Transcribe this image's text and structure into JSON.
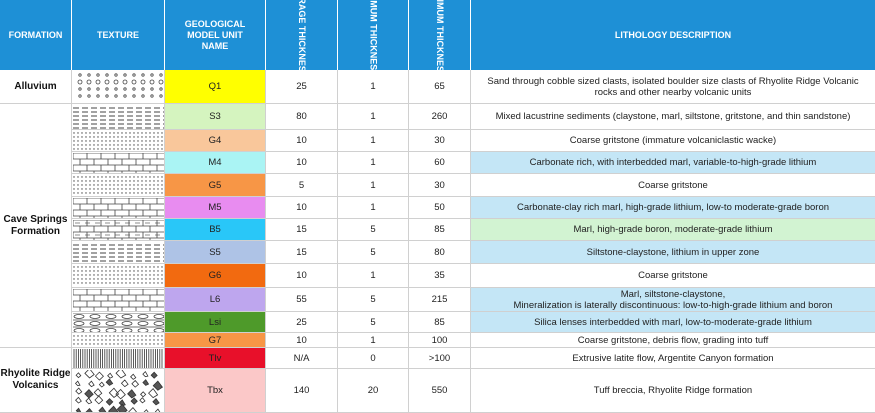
{
  "headers": {
    "formation": "FORMATION",
    "texture": "TEXTURE",
    "unit": "GEOLOGICAL MODEL UNIT NAME",
    "avg": "*AVERAGE THICKNESS (M)",
    "min": "*MINIMUM THICKNESS (M)",
    "max": "*MAXIMUM THICKNESS (M)",
    "lith": "LITHOLOGY DESCRIPTION"
  },
  "formations": [
    {
      "name": "Alluvium"
    },
    {
      "name": "Cave Springs Formation"
    },
    {
      "name": "Rhyolite Ridge Volcanics"
    }
  ],
  "rows": [
    {
      "unit": "Q1",
      "avg": "25",
      "min": "1",
      "max": "65",
      "lith": "Sand through cobble sized clasts, isolated boulder size clasts of Rhyolite Ridge Volcanic rocks and other nearby volcanic units",
      "unit_color": "#ffff00",
      "lith_bg": "#ffffff",
      "texture": "gravel-icon"
    },
    {
      "unit": "S3",
      "avg": "80",
      "min": "1",
      "max": "260",
      "lith": "Mixed lacustrine sediments (claystone, marl, siltstone, gritstone, and thin sandstone)",
      "unit_color": "#d5f4bf",
      "lith_bg": "#ffffff",
      "texture": "dash-icon"
    },
    {
      "unit": "G4",
      "avg": "10",
      "min": "1",
      "max": "30",
      "lith": "Coarse gritstone (immature volcaniclastic wacke)",
      "unit_color": "#f9c79b",
      "lith_bg": "#ffffff",
      "texture": "dots-icon"
    },
    {
      "unit": "M4",
      "avg": "10",
      "min": "1",
      "max": "60",
      "lith": "Carbonate rich, with interbedded marl, variable-to-high-grade lithium",
      "unit_color": "#aaf4f4",
      "lith_bg": "#c4e6f6",
      "texture": "brick-icon"
    },
    {
      "unit": "G5",
      "avg": "5",
      "min": "1",
      "max": "30",
      "lith": "Coarse gritstone",
      "unit_color": "#f79646",
      "lith_bg": "#ffffff",
      "texture": "dots-icon"
    },
    {
      "unit": "M5",
      "avg": "10",
      "min": "1",
      "max": "50",
      "lith": "Carbonate-clay rich marl, high-grade lithium, low-to moderate-grade boron",
      "unit_color": "#e88cf0",
      "lith_bg": "#c4e6f6",
      "texture": "brick-icon"
    },
    {
      "unit": "B5",
      "avg": "15",
      "min": "5",
      "max": "85",
      "lith": "Marl, high-grade boron, moderate-grade lithium",
      "unit_color": "#29c7f8",
      "lith_bg": "#d2f3d2",
      "texture": "brick-dash-icon"
    },
    {
      "unit": "S5",
      "avg": "15",
      "min": "5",
      "max": "80",
      "lith": "Siltstone-claystone, lithium in upper zone",
      "unit_color": "#aec3e6",
      "lith_bg": "#c4e6f6",
      "texture": "dash-icon"
    },
    {
      "unit": "G6",
      "avg": "10",
      "min": "1",
      "max": "35",
      "lith": "Coarse gritstone",
      "unit_color": "#f26a10",
      "lith_bg": "#ffffff",
      "texture": "dots-icon"
    },
    {
      "unit": "L6",
      "avg": "55",
      "min": "5",
      "max": "215",
      "lith": "Marl, siltstone-claystone, Mineralization is laterally discontinuous: low-to-high-grade lithium and boron",
      "lith_lines": [
        "Marl, siltstone-claystone,",
        "Mineralization is laterally discontinuous: low-to-high-grade lithium and boron"
      ],
      "unit_color": "#bea6ee",
      "lith_bg": "#c4e6f6",
      "texture": "brick-icon"
    },
    {
      "unit": "Lsi",
      "avg": "25",
      "min": "5",
      "max": "85",
      "lith": "Silica lenses interbedded with marl, low-to-moderate-grade lithium",
      "unit_color": "#4e9a2a",
      "lith_bg": "#c4e6f6",
      "texture": "lens-icon"
    },
    {
      "unit": "G7",
      "avg": "10",
      "min": "1",
      "max": "100",
      "lith": "Coarse gritstone, debris flow, grading into tuff",
      "unit_color": "#f79646",
      "lith_bg": "#ffffff",
      "texture": "dots-icon"
    },
    {
      "unit": "Tlv",
      "avg": "N/A",
      "min": "0",
      "max": ">100",
      "lith": "Extrusive latite flow, Argentite Canyon formation",
      "unit_color": "#e8102a",
      "lith_bg": "#ffffff",
      "texture": "vertical-lines-icon"
    },
    {
      "unit": "Tbx",
      "avg": "140",
      "min": "20",
      "max": "550",
      "lith": "Tuff breccia, Rhyolite Ridge formation",
      "unit_color": "#fbc8c8",
      "lith_bg": "#ffffff",
      "texture": "breccia-icon"
    }
  ],
  "colors": {
    "header": "#1e90d6",
    "gridline": "#d0d0d0"
  }
}
